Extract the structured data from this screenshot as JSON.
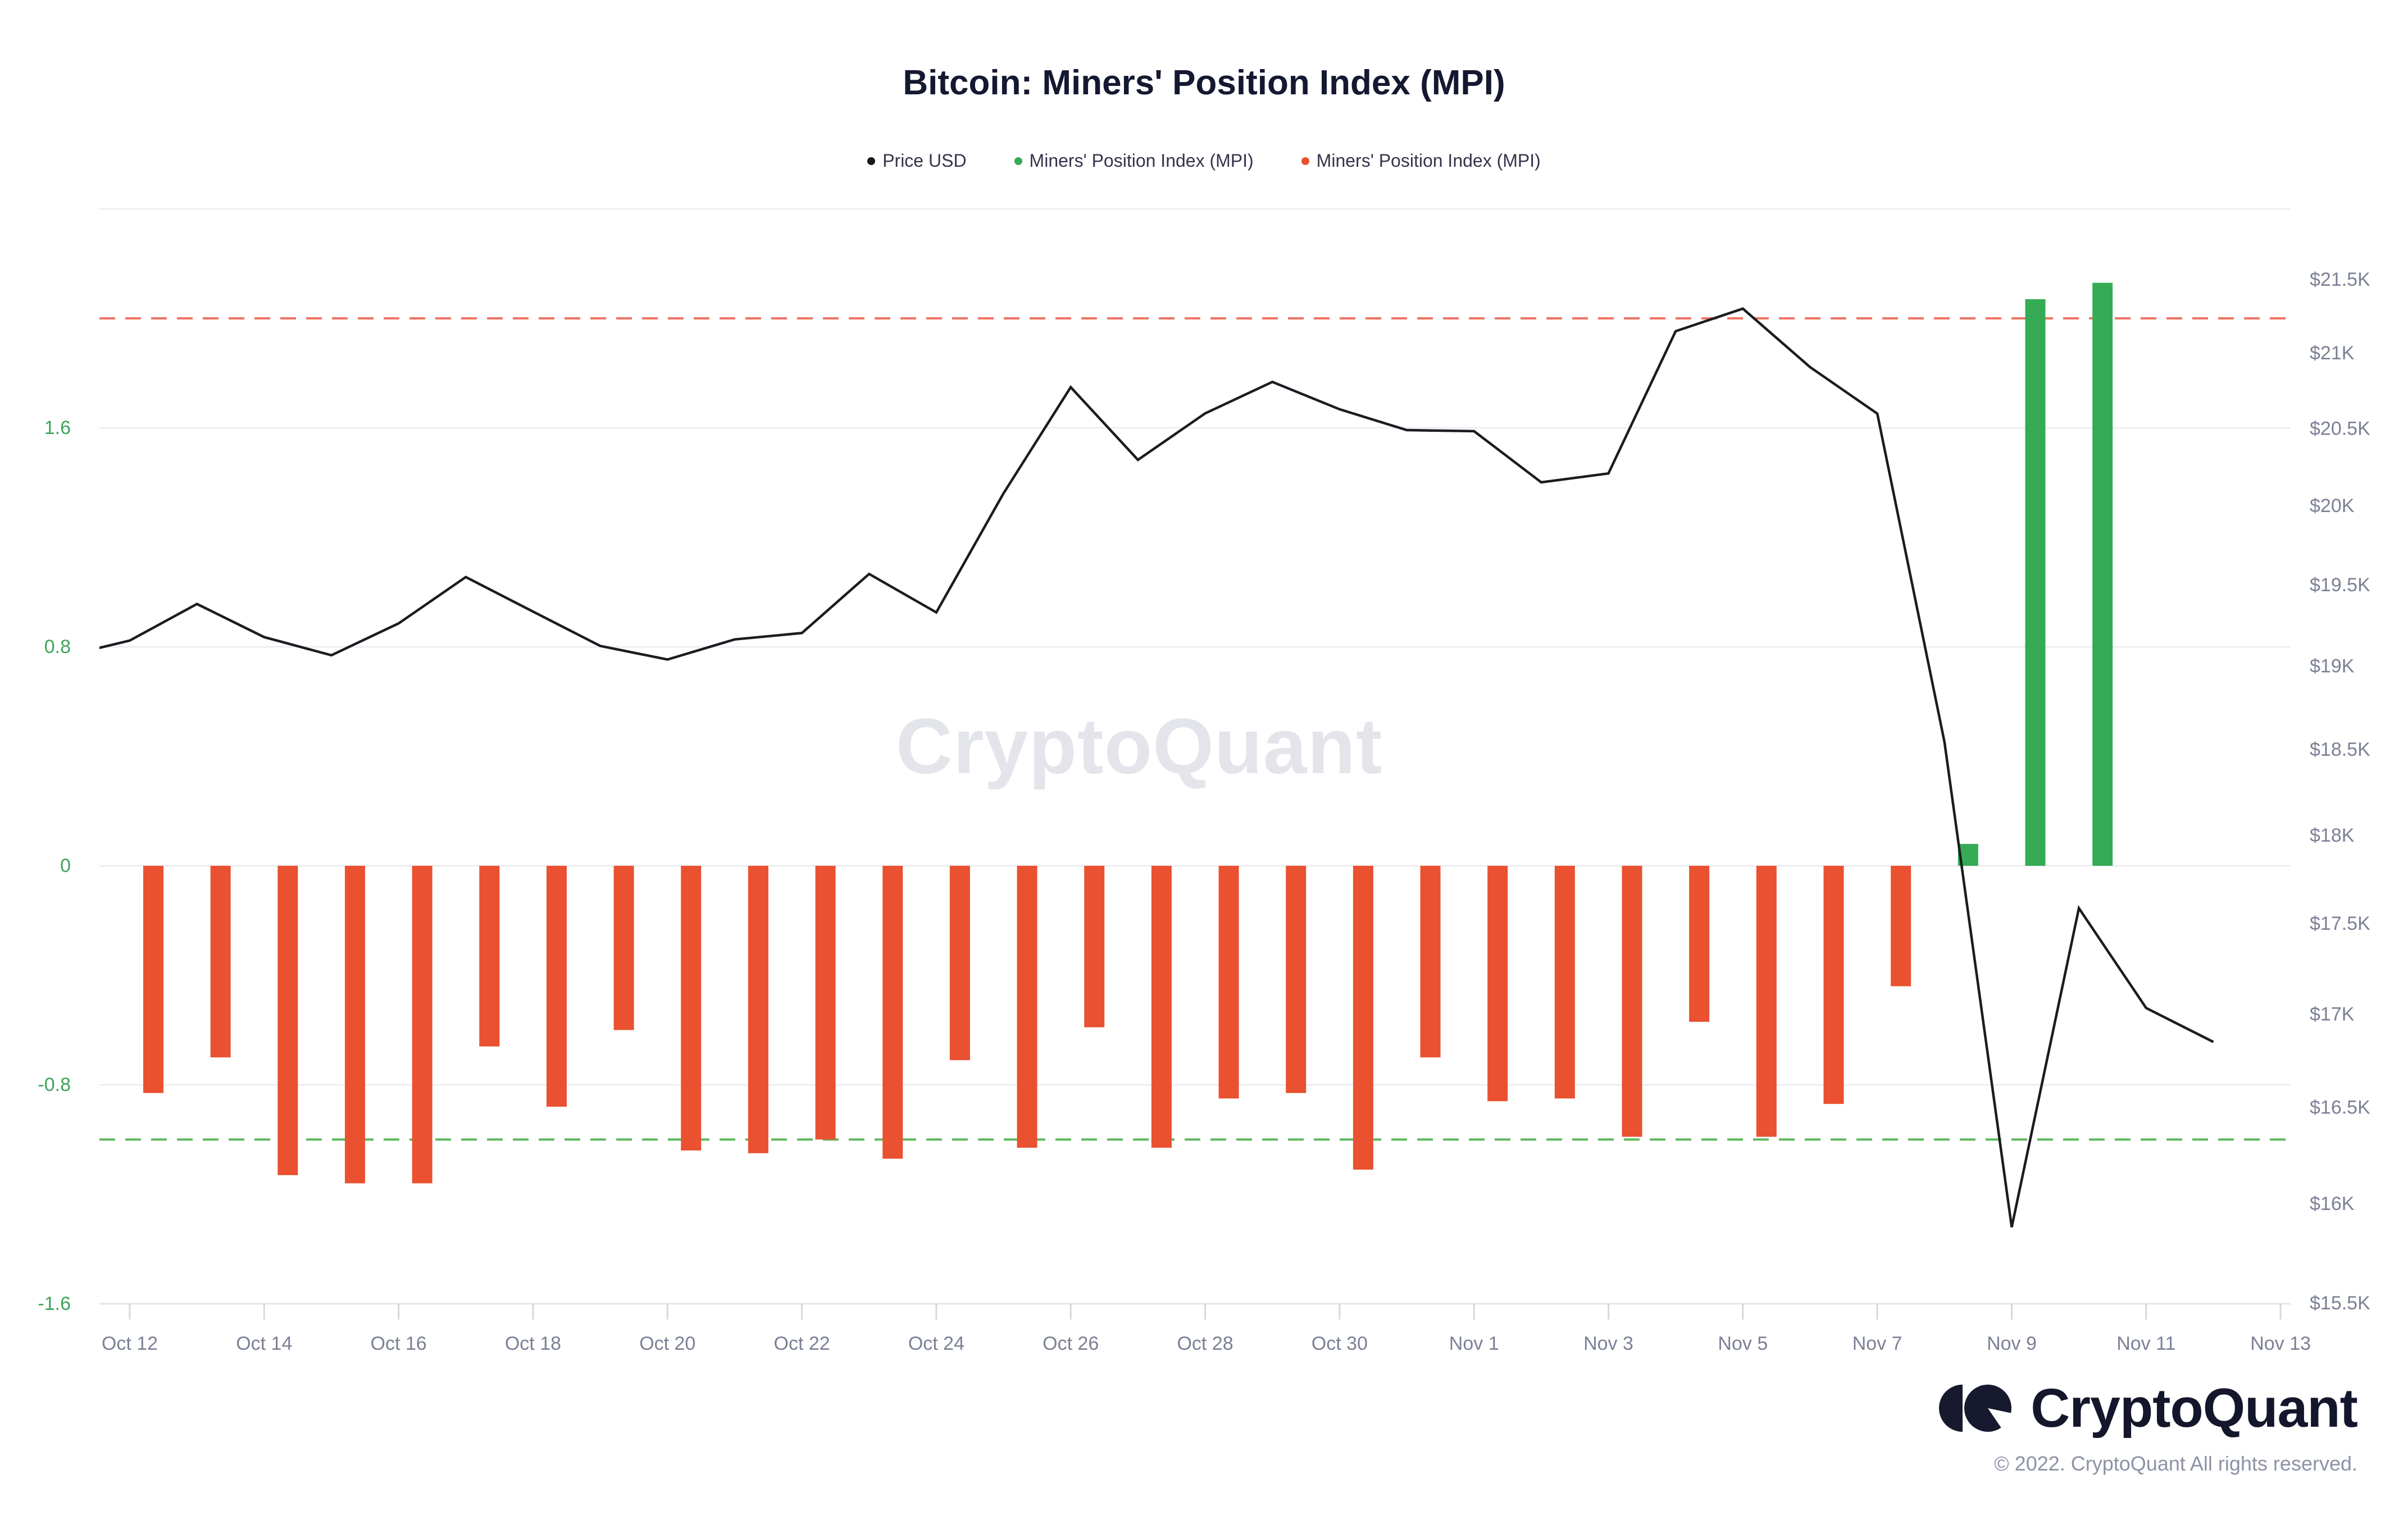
{
  "title": "Bitcoin: Miners' Position Index (MPI)",
  "legend": {
    "items": [
      {
        "label": "Price USD",
        "color": "#17181d"
      },
      {
        "label": "Miners' Position Index (MPI)",
        "color": "#35ab55"
      },
      {
        "label": "Miners' Position Index (MPI)",
        "color": "#e95130"
      }
    ]
  },
  "watermark": "CryptoQuant",
  "footer": {
    "brand": "CryptoQuant",
    "copyright": "© 2022. CryptoQuant All rights reserved."
  },
  "chart_data": {
    "type": "bar+line",
    "title": "Bitcoin: Miners' Position Index (MPI)",
    "grid": "horizontal-only",
    "x_axis": {
      "tick_labels": [
        "Oct 12",
        "Oct 14",
        "Oct 16",
        "Oct 18",
        "Oct 20",
        "Oct 22",
        "Oct 24",
        "Oct 26",
        "Oct 28",
        "Oct 30",
        "Nov 1",
        "Nov 3",
        "Nov 5",
        "Nov 7",
        "Nov 9",
        "Nov 11",
        "Nov 13"
      ],
      "tick_step_days": 2,
      "label_color": "#7c8095"
    },
    "left_axis": {
      "name": "Miners' Position Index (MPI)",
      "tick_labels": [
        "1.6",
        "0.8",
        "0",
        "-0.8",
        "-1.6"
      ],
      "tick_values": [
        1.6,
        0.8,
        0,
        -0.8,
        -1.6
      ],
      "gridline_values": [
        2.4,
        1.6,
        0.8,
        0,
        -0.8
      ],
      "range": [
        -1.6,
        2.4
      ],
      "label_color": "#3fa45a"
    },
    "right_axis": {
      "name": "Price USD",
      "scale": "log",
      "tick_labels": [
        "$21.5K",
        "$21K",
        "$20.5K",
        "$20K",
        "$19.5K",
        "$19K",
        "$18.5K",
        "$18K",
        "$17.5K",
        "$17K",
        "$16.5K",
        "$16K",
        "$15.5K"
      ],
      "tick_values": [
        21500,
        21000,
        20500,
        20000,
        19500,
        19000,
        18500,
        18000,
        17500,
        17000,
        16500,
        16000,
        15500
      ],
      "label_color": "#7c8095"
    },
    "thresholds": [
      {
        "name": "mpi-upper-threshold",
        "value": 2.0,
        "color": "#ef7365",
        "style": "dashed"
      },
      {
        "name": "mpi-lower-threshold",
        "value": -1.0,
        "color": "#5cb85c",
        "style": "dashed"
      }
    ],
    "series": [
      {
        "name": "Price USD",
        "type": "line",
        "color": "#1b1c21",
        "start_day": -1,
        "dates": [
          "Oct 11",
          "Oct 12",
          "Oct 13",
          "Oct 14",
          "Oct 15",
          "Oct 16",
          "Oct 17",
          "Oct 18",
          "Oct 19",
          "Oct 20",
          "Oct 21",
          "Oct 22",
          "Oct 23",
          "Oct 24",
          "Oct 25",
          "Oct 26",
          "Oct 27",
          "Oct 28",
          "Oct 29",
          "Oct 30",
          "Oct 31",
          "Nov 1",
          "Nov 2",
          "Nov 3",
          "Nov 4",
          "Nov 5",
          "Nov 6",
          "Nov 7",
          "Nov 8",
          "Nov 9",
          "Nov 10",
          "Nov 11",
          "Nov 12"
        ],
        "values": [
          19058,
          19157,
          19382,
          19178,
          19067,
          19262,
          19550,
          19335,
          19124,
          19041,
          19164,
          19203,
          19569,
          19330,
          20080,
          20773,
          20296,
          20600,
          20808,
          20627,
          20490,
          20483,
          20151,
          20208,
          21148,
          21301,
          20907,
          20598,
          18545,
          15881,
          17586,
          17034,
          16850
        ]
      },
      {
        "name": "Miners' Position Index (MPI)",
        "type": "bar",
        "positive_color": "#35ab55",
        "negative_color": "#e95130",
        "start_day": 0,
        "dates": [
          "Oct 12",
          "Oct 13",
          "Oct 14",
          "Oct 15",
          "Oct 16",
          "Oct 17",
          "Oct 18",
          "Oct 19",
          "Oct 20",
          "Oct 21",
          "Oct 22",
          "Oct 23",
          "Oct 24",
          "Oct 25",
          "Oct 26",
          "Oct 27",
          "Oct 28",
          "Oct 29",
          "Oct 30",
          "Oct 31",
          "Nov 1",
          "Nov 2",
          "Nov 3",
          "Nov 4",
          "Nov 5",
          "Nov 6",
          "Nov 7",
          "Nov 8",
          "Nov 9",
          "Nov 10"
        ],
        "values": [
          -0.83,
          -0.7,
          -1.13,
          -1.16,
          -1.16,
          -0.66,
          -0.88,
          -0.6,
          -1.04,
          -1.05,
          -1.0,
          -1.07,
          -0.71,
          -1.03,
          -0.59,
          -1.03,
          -0.85,
          -0.83,
          -1.11,
          -0.7,
          -0.86,
          -0.85,
          -0.99,
          -0.57,
          -0.99,
          -0.87,
          -0.44,
          0.08,
          2.07,
          2.13
        ]
      }
    ]
  }
}
